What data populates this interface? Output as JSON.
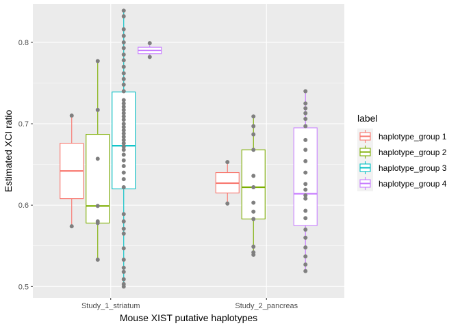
{
  "chart_data": {
    "type": "boxplot",
    "xlabel": "Mouse XIST putative haplotypes",
    "ylabel": "Estimated XCI ratio",
    "categories": [
      "Study_1_striatum",
      "Study_2_pancreas"
    ],
    "ylim": [
      0.486,
      0.847
    ],
    "yticks": [
      0.5,
      0.6,
      0.7,
      0.8
    ],
    "ytick_labels": [
      "0.5",
      "0.6",
      "0.7",
      "0.8"
    ],
    "grid": true,
    "legend": {
      "title": "label",
      "position": "right"
    },
    "point_color": "#7f7f7f",
    "series": [
      {
        "name": "haplotype_group 1",
        "color": "#F8766D",
        "boxes": [
          {
            "category": "Study_1_striatum",
            "min": 0.574,
            "q1": 0.608,
            "median": 0.642,
            "q3": 0.676,
            "max": 0.71,
            "points": [
              0.71,
              0.574
            ]
          },
          {
            "category": "Study_2_pancreas",
            "min": 0.602,
            "q1": 0.615,
            "median": 0.627,
            "q3": 0.64,
            "max": 0.653,
            "points": [
              0.653,
              0.602
            ]
          }
        ]
      },
      {
        "name": "haplotype_group 2",
        "color": "#7CAE00",
        "boxes": [
          {
            "category": "Study_1_striatum",
            "min": 0.533,
            "q1": 0.578,
            "median": 0.599,
            "q3": 0.687,
            "max": 0.777,
            "points": [
              0.777,
              0.717,
              0.657,
              0.599,
              0.58,
              0.578,
              0.533
            ]
          },
          {
            "category": "Study_2_pancreas",
            "min": 0.539,
            "q1": 0.583,
            "median": 0.622,
            "q3": 0.668,
            "max": 0.709,
            "points": [
              0.709,
              0.697,
              0.687,
              0.668,
              0.636,
              0.622,
              0.603,
              0.592,
              0.583,
              0.549,
              0.542,
              0.539
            ]
          }
        ]
      },
      {
        "name": "haplotype_group 3",
        "color": "#00BFC4",
        "boxes": [
          {
            "category": "Study_1_striatum",
            "min": 0.5,
            "q1": 0.62,
            "median": 0.673,
            "q3": 0.739,
            "max": 0.839,
            "points": [
              0.839,
              0.832,
              0.816,
              0.808,
              0.8,
              0.793,
              0.785,
              0.778,
              0.77,
              0.762,
              0.755,
              0.748,
              0.74,
              0.729,
              0.725,
              0.721,
              0.717,
              0.713,
              0.709,
              0.705,
              0.7,
              0.696,
              0.692,
              0.688,
              0.684,
              0.68,
              0.676,
              0.672,
              0.668,
              0.662,
              0.655,
              0.648,
              0.64,
              0.632,
              0.622,
              0.589,
              0.58,
              0.571,
              0.565,
              0.547,
              0.533,
              0.523,
              0.518,
              0.509,
              0.503,
              0.5
            ]
          }
        ]
      },
      {
        "name": "haplotype_group 4",
        "color": "#C77CFF",
        "boxes": [
          {
            "category": "Study_1_striatum",
            "min": 0.782,
            "q1": 0.786,
            "median": 0.79,
            "q3": 0.794,
            "max": 0.799,
            "points": [
              0.799,
              0.782
            ]
          },
          {
            "category": "Study_2_pancreas",
            "min": 0.519,
            "q1": 0.575,
            "median": 0.614,
            "q3": 0.695,
            "max": 0.74,
            "points": [
              0.74,
              0.725,
              0.719,
              0.713,
              0.706,
              0.697,
              0.68,
              0.668,
              0.654,
              0.64,
              0.626,
              0.619,
              0.612,
              0.608,
              0.593,
              0.584,
              0.57,
              0.56,
              0.548,
              0.537,
              0.527,
              0.519
            ]
          }
        ]
      }
    ]
  }
}
